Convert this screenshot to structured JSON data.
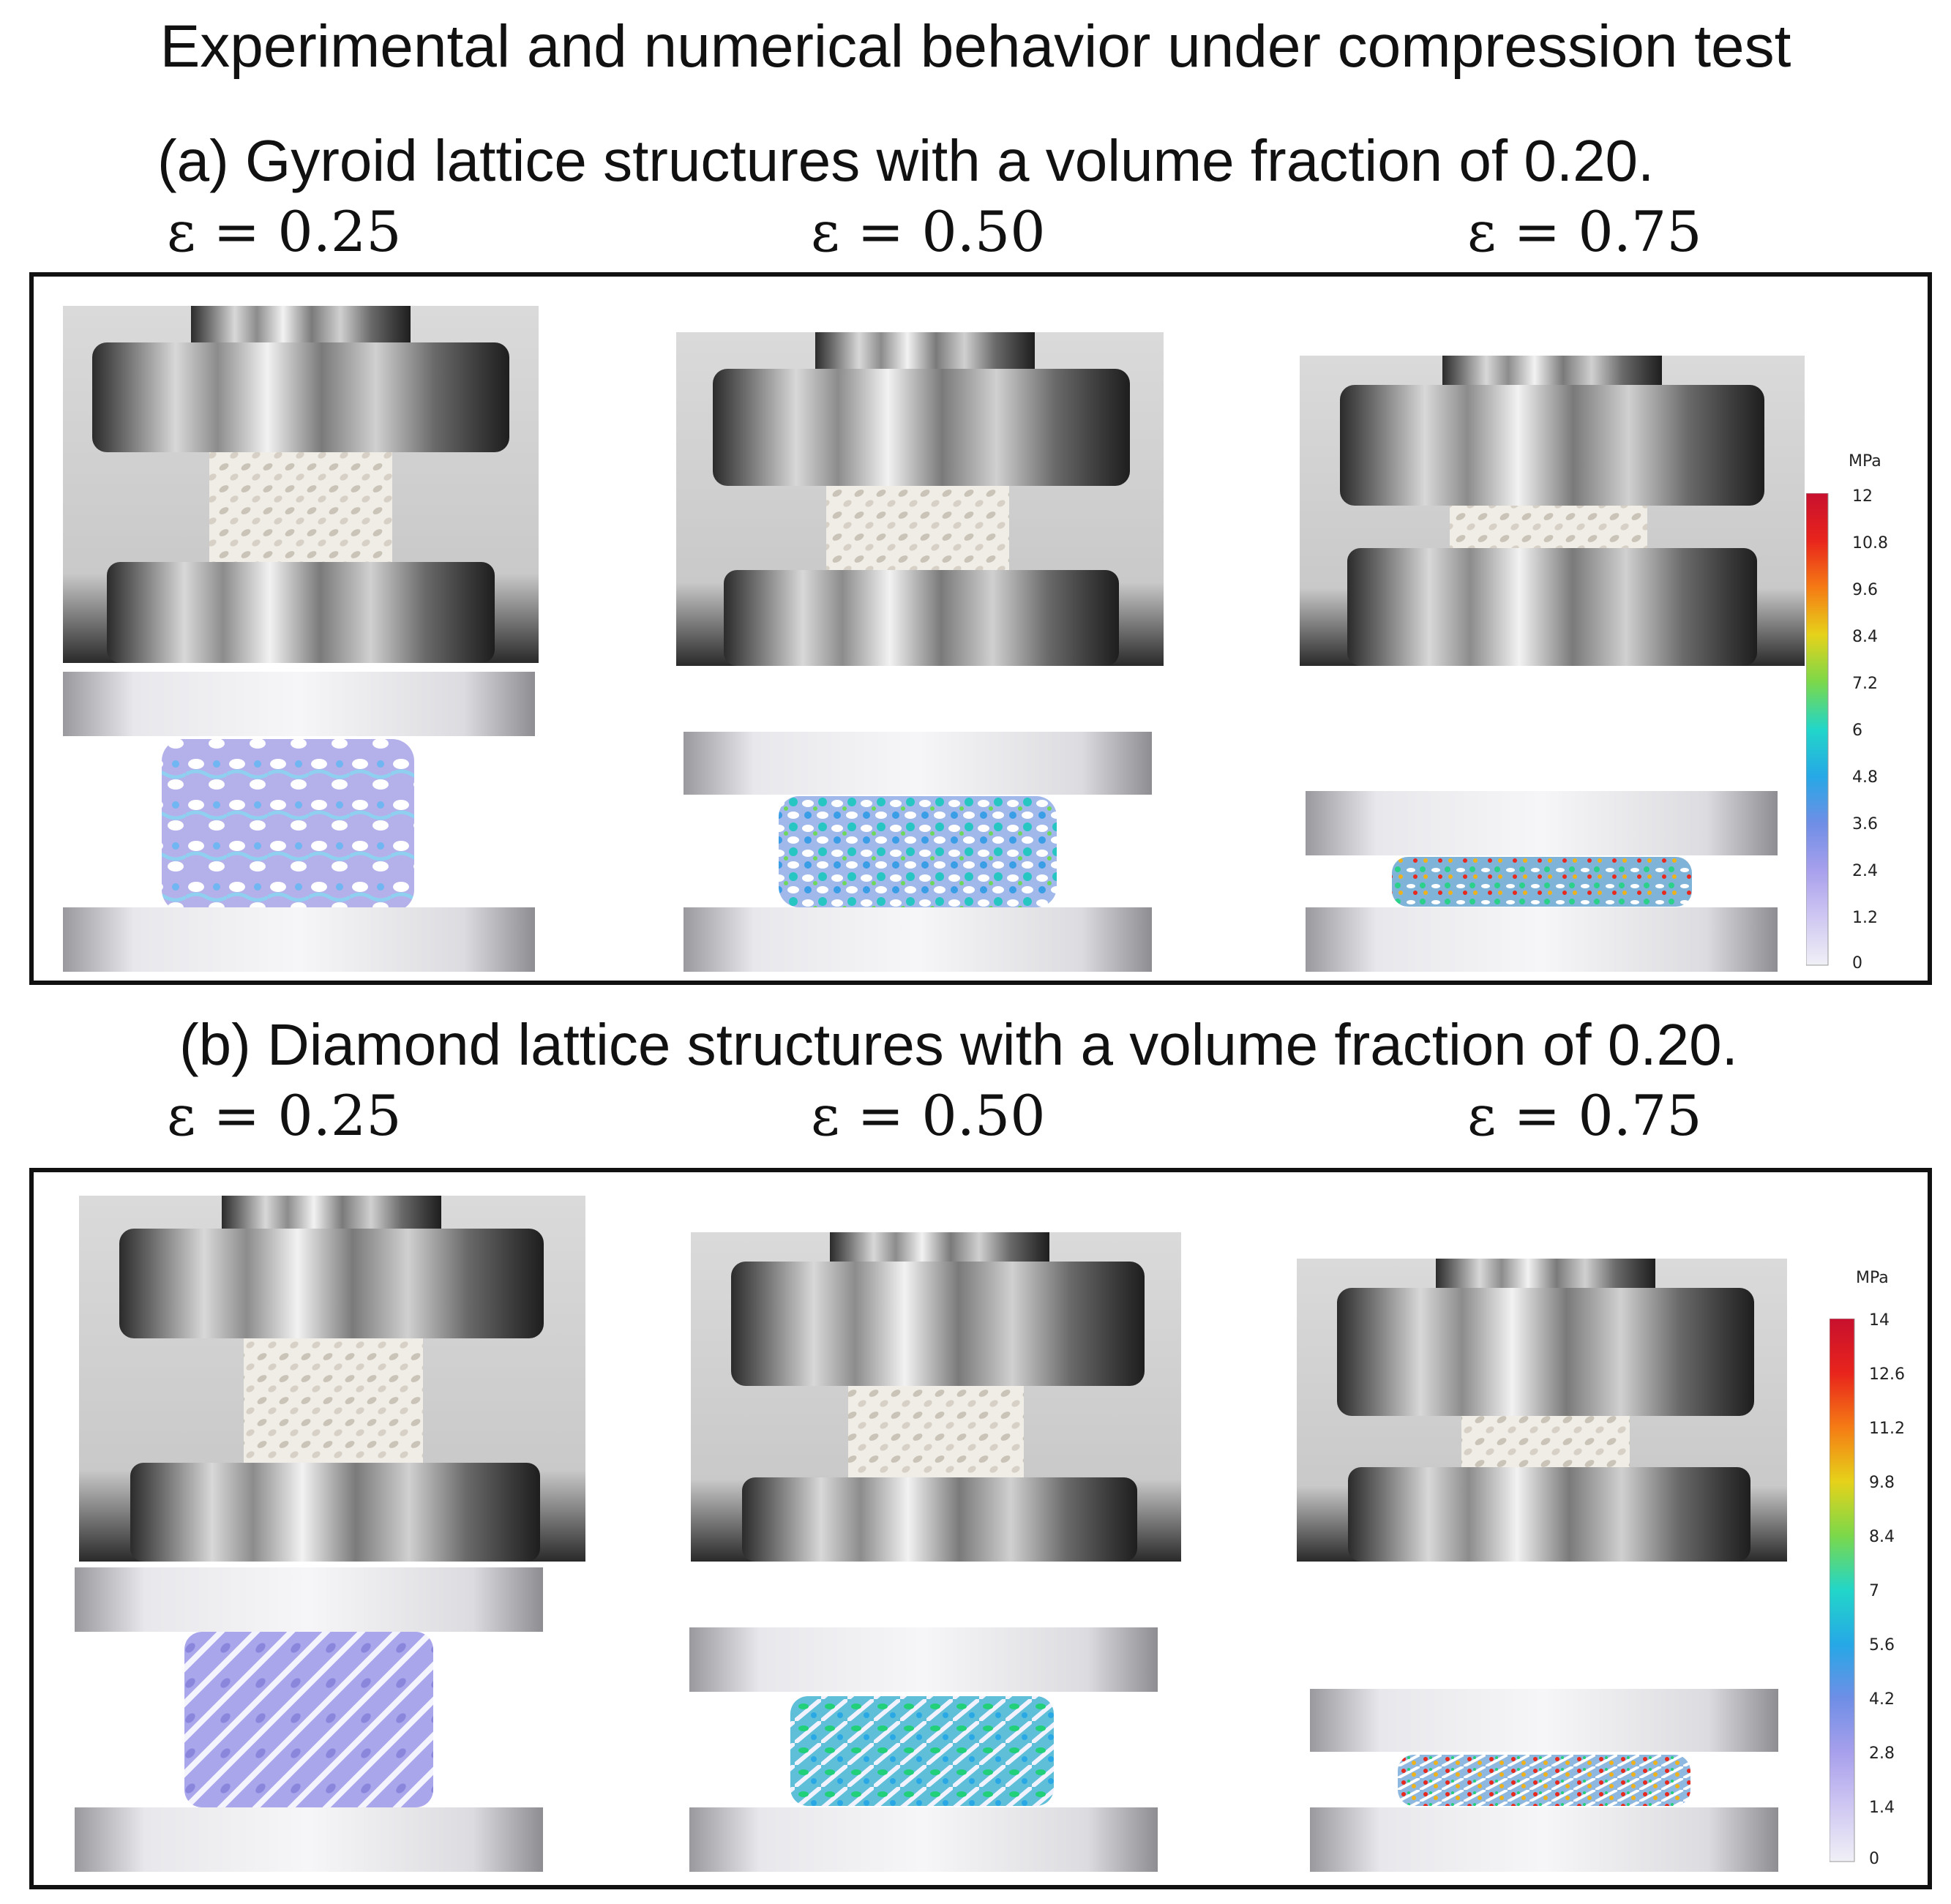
{
  "title": "Experimental and numerical behavior under compression test",
  "sections": [
    {
      "heading": "(a) Gyroid  lattice structures with a volume fraction of 0.20.",
      "strains": [
        "ε = 0.25",
        "ε = 0.50",
        "ε = 0.75"
      ],
      "lattice": "gyroid",
      "colorbar": {
        "unit": "MPa",
        "ticks": [
          "12",
          "10.8",
          "9.6",
          "8.4",
          "7.2",
          "6",
          "4.8",
          "3.6",
          "2.4",
          "1.2",
          "0"
        ]
      }
    },
    {
      "heading": "(b) Diamond  lattice structures with a volume fraction of 0.20.",
      "strains": [
        "ε = 0.25",
        "ε = 0.50",
        "ε = 0.75"
      ],
      "lattice": "diamond",
      "colorbar": {
        "unit": "MPa",
        "ticks": [
          "14",
          "12.6",
          "11.2",
          "9.8",
          "8.4",
          "7",
          "5.6",
          "4.2",
          "2.8",
          "1.4",
          "0"
        ]
      }
    }
  ],
  "colors": {
    "colorbar_stops": [
      "#c8102e",
      "#e8241c",
      "#f57b14",
      "#e6d21a",
      "#7bd84a",
      "#22d07a",
      "#22d6c9",
      "#26a8e6",
      "#8f92e0",
      "#c8c0f0",
      "#eeeef6"
    ],
    "panel_border": "#111111",
    "sim_base": "#a9a6e6"
  },
  "icons": [
    "compression-platen-icon",
    "lattice-specimen-icon"
  ]
}
